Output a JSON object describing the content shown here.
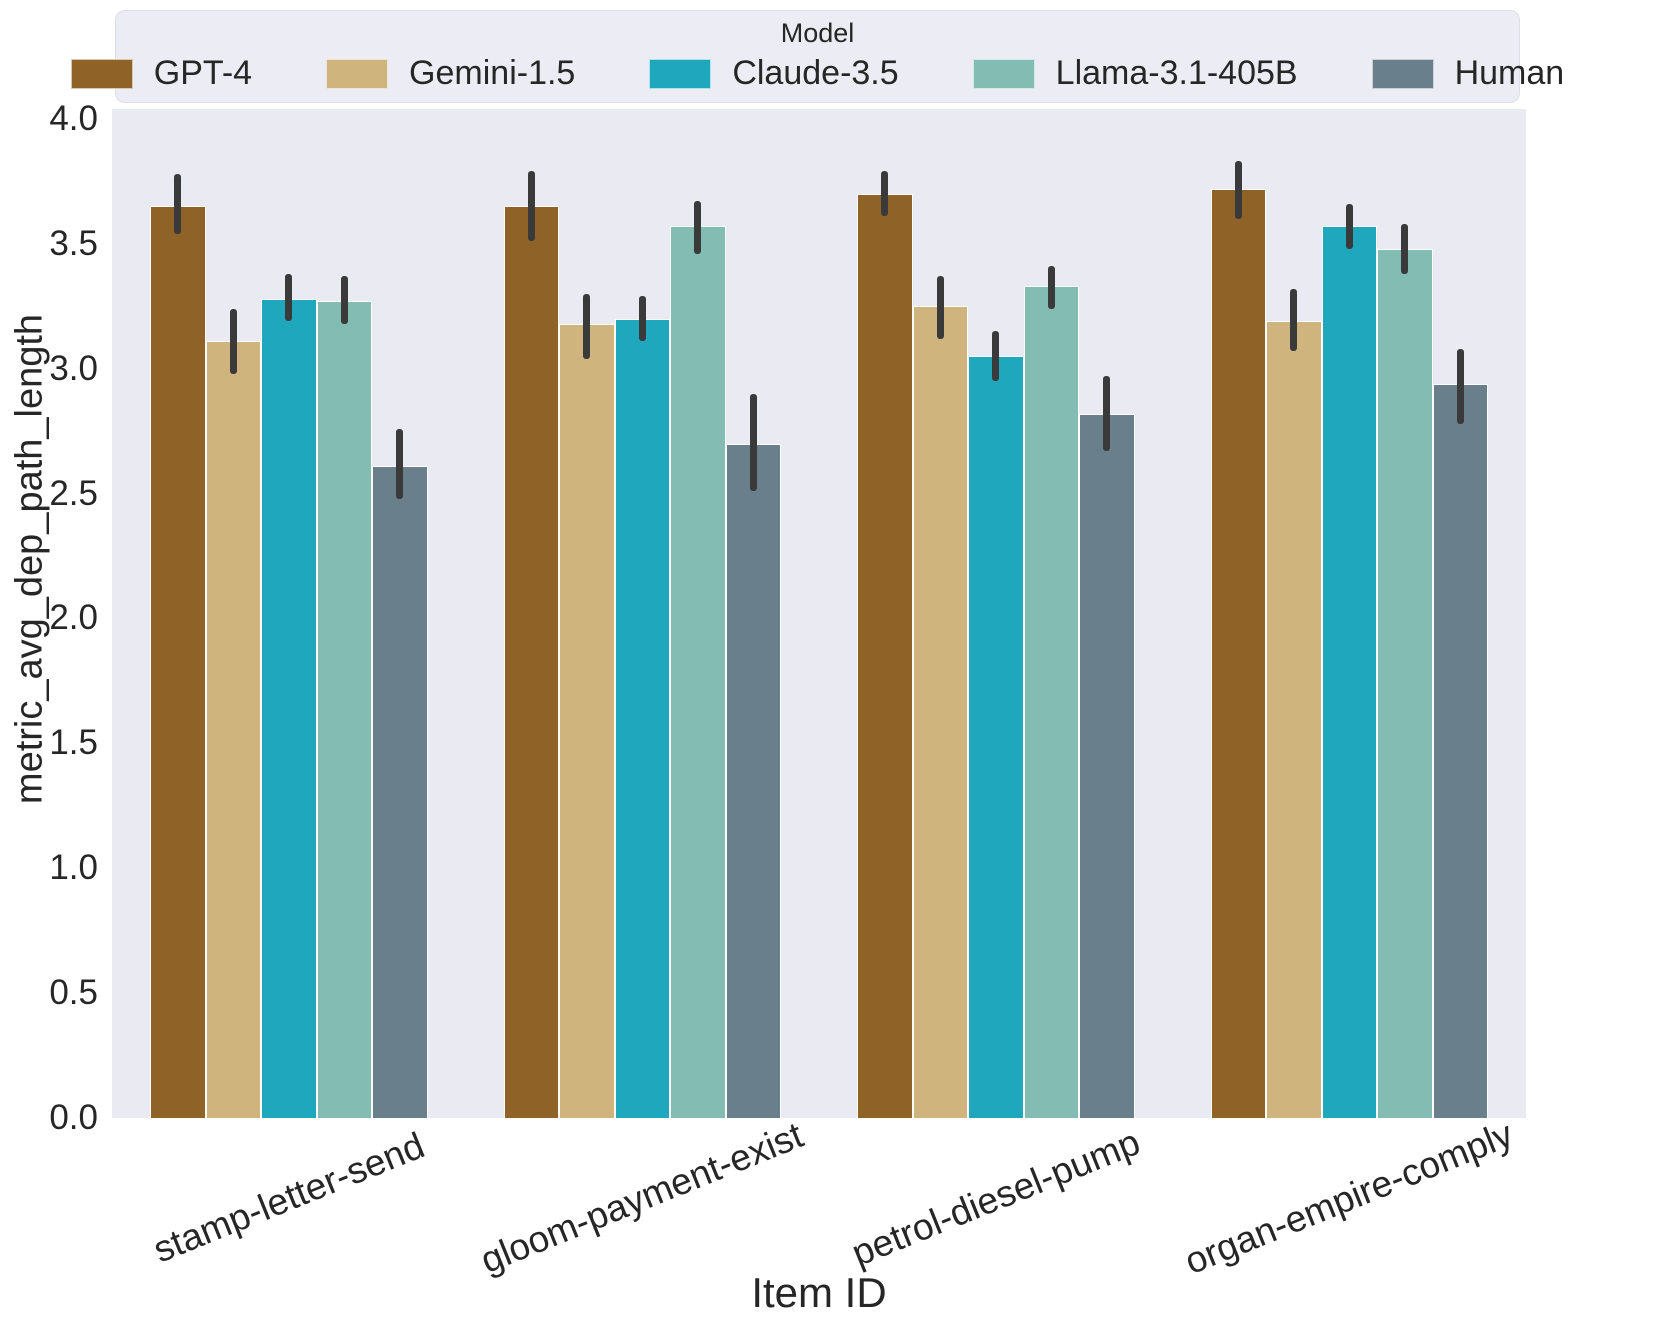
{
  "chart_data": {
    "type": "bar",
    "legend_title": "Model",
    "legend_position": "top",
    "xlabel": "Item ID",
    "ylabel": "metric_avg_dep_path_length",
    "ylim": [
      0.0,
      4.04
    ],
    "yticks": [
      "0.0",
      "0.5",
      "1.0",
      "1.5",
      "2.0",
      "2.5",
      "3.0",
      "3.5",
      "4.0"
    ],
    "grid": false,
    "categories": [
      "stamp-letter-send",
      "gloom-payment-exist",
      "petrol-diesel-pump",
      "organ-empire-comply"
    ],
    "series": [
      {
        "name": "GPT-4",
        "color": "#8f6227",
        "values": [
          3.65,
          3.65,
          3.7,
          3.72
        ],
        "err_low": [
          3.54,
          3.51,
          3.61,
          3.6
        ],
        "err_high": [
          3.78,
          3.79,
          3.79,
          3.83
        ]
      },
      {
        "name": "Gemini-1.5",
        "color": "#cfb47e",
        "values": [
          3.11,
          3.18,
          3.25,
          3.19
        ],
        "err_low": [
          2.98,
          3.04,
          3.12,
          3.07
        ],
        "err_high": [
          3.24,
          3.3,
          3.37,
          3.32
        ]
      },
      {
        "name": "Claude-3.5",
        "color": "#1ea7bd",
        "values": [
          3.28,
          3.2,
          3.05,
          3.57
        ],
        "err_low": [
          3.19,
          3.11,
          2.95,
          3.48
        ],
        "err_high": [
          3.38,
          3.29,
          3.15,
          3.66
        ]
      },
      {
        "name": "Llama-3.1-405B",
        "color": "#83bcb2",
        "values": [
          3.27,
          3.57,
          3.33,
          3.48
        ],
        "err_low": [
          3.18,
          3.46,
          3.24,
          3.38
        ],
        "err_high": [
          3.37,
          3.67,
          3.41,
          3.58
        ]
      },
      {
        "name": "Human",
        "color": "#697f8b",
        "values": [
          2.61,
          2.7,
          2.82,
          2.94
        ],
        "err_low": [
          2.48,
          2.51,
          2.67,
          2.78
        ],
        "err_high": [
          2.76,
          2.9,
          2.97,
          3.08
        ]
      }
    ],
    "style": {
      "plot_bg": "#eaeaf2",
      "error_bar_color": "#3a3a3a",
      "text_color": "#262626"
    }
  }
}
